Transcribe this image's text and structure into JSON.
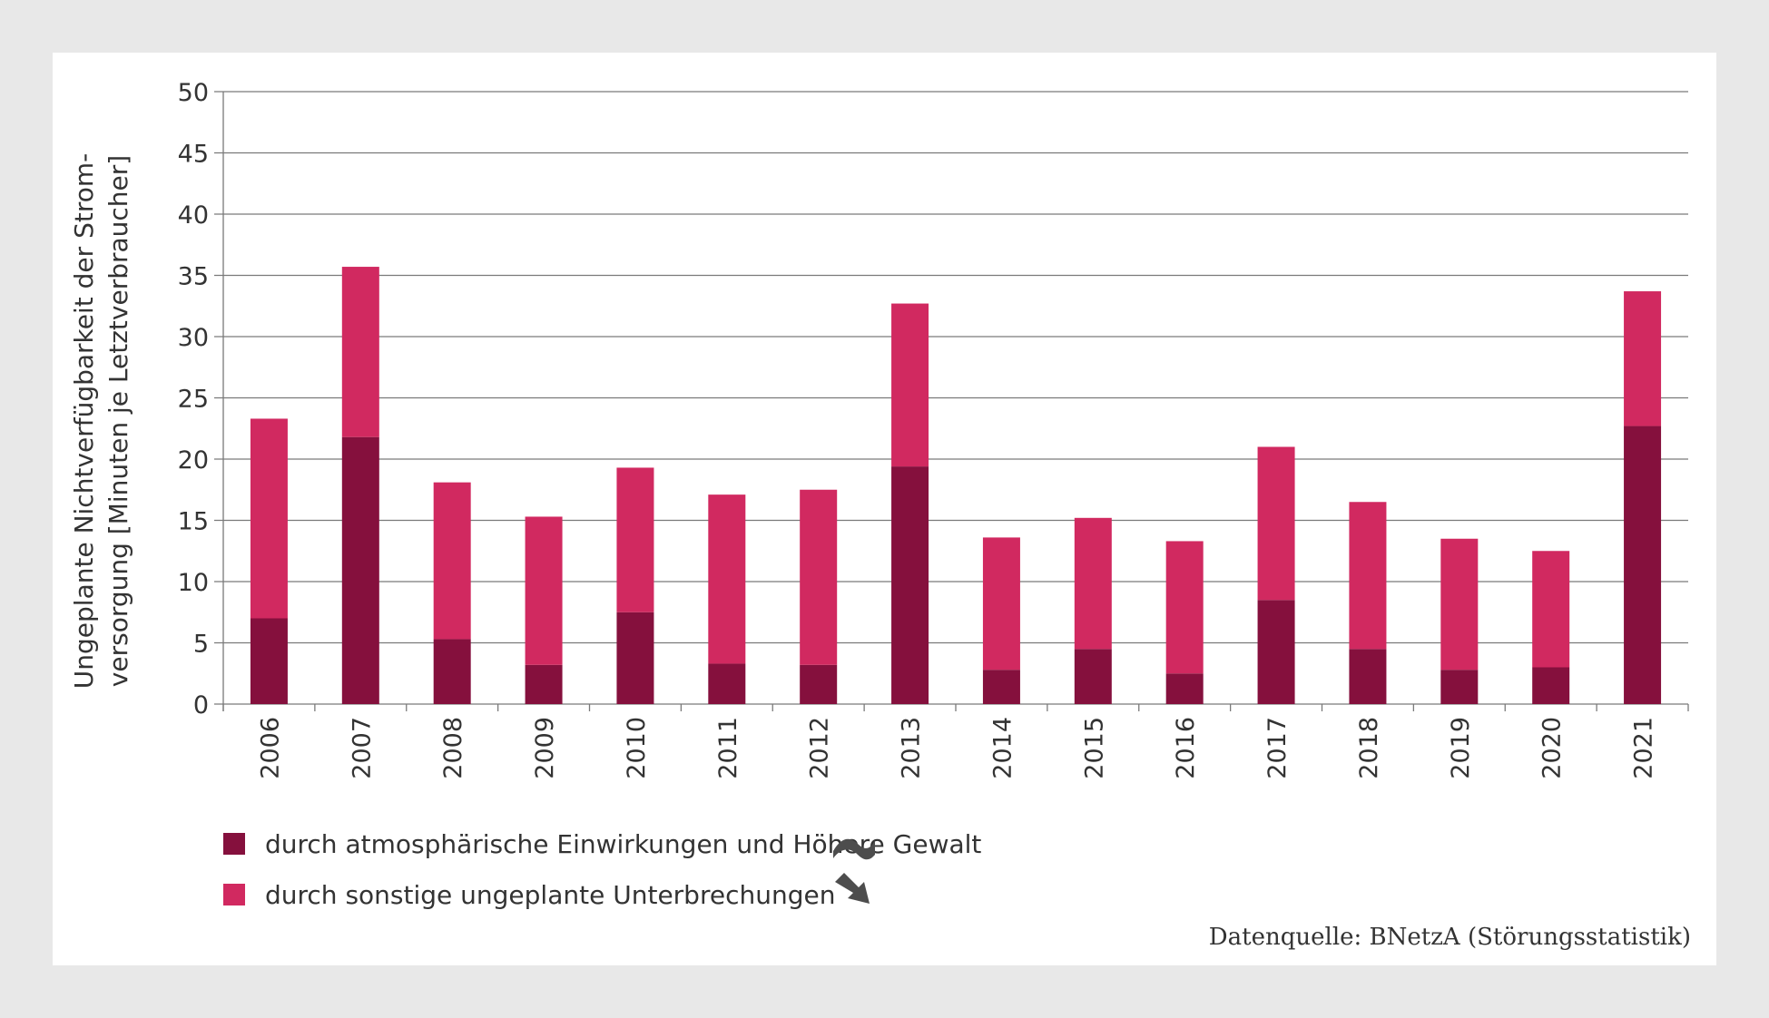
{
  "chart_data": {
    "type": "bar",
    "stacked": true,
    "categories": [
      "2006",
      "2007",
      "2008",
      "2009",
      "2010",
      "2011",
      "2012",
      "2013",
      "2014",
      "2015",
      "2016",
      "2017",
      "2018",
      "2019",
      "2020",
      "2021"
    ],
    "series": [
      {
        "name": "durch atmosphärische Einwirkungen und Höhere Gewalt",
        "color": "#85103d",
        "values": [
          7.0,
          21.8,
          5.3,
          3.2,
          7.5,
          3.3,
          3.2,
          19.4,
          2.8,
          4.5,
          2.5,
          8.5,
          4.5,
          2.8,
          3.0,
          22.7
        ],
        "trend": "none"
      },
      {
        "name": "durch sonstige ungeplante Unterbrechungen",
        "color": "#d12960",
        "values": [
          16.3,
          13.9,
          12.8,
          12.1,
          11.8,
          13.8,
          14.3,
          13.3,
          10.8,
          10.7,
          10.8,
          12.5,
          12.0,
          10.7,
          9.5,
          11.0
        ],
        "trend": "decreasing"
      }
    ],
    "ylabel": "Ungeplante Nichtverfügbarkeit der Strom-versorgung [Minuten je Letztverbraucher]",
    "ylabel_line1": "Ungeplante Nichtverfügbarkeit der Strom-",
    "ylabel_line2": "versorgung [Minuten je Letztverbraucher]",
    "xlabel": "",
    "ylim": [
      0,
      50
    ],
    "yticks": [
      0,
      5,
      10,
      15,
      20,
      25,
      30,
      35,
      40,
      45,
      50
    ],
    "grid": true,
    "legend_position": "bottom-left"
  },
  "legend": {
    "items": [
      {
        "label": "durch atmosphärische Einwirkungen und Höhere Gewalt",
        "color": "#85103d",
        "trend_icon": "tilde-no-trend-icon"
      },
      {
        "label": "durch sonstige ungeplante Unterbrechungen",
        "color": "#d12960",
        "trend_icon": "arrow-down-right-trend-icon"
      }
    ]
  },
  "source": "Datenquelle: BNetzA (Störungsstatistik)",
  "colors": {
    "background": "#e8e8e8",
    "panel": "#ffffff",
    "grid": "#7a7a7a",
    "text": "#333333",
    "icon": "#4d4d4d"
  }
}
